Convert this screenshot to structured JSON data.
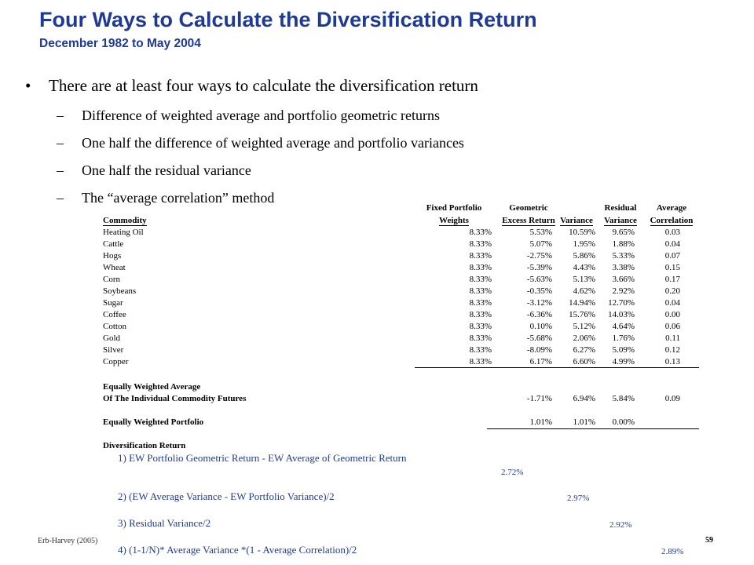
{
  "header": {
    "title": "Four Ways to Calculate the Diversification Return",
    "subtitle": "December  1982 to May 2004"
  },
  "bullets": {
    "main": "There are at least four ways to calculate the diversification return",
    "subs": [
      "Difference of weighted average and portfolio geometric returns",
      "One half the difference of weighted average and portfolio variances",
      "One half the residual variance",
      "The “average correlation” method"
    ]
  },
  "table": {
    "headers": {
      "commodity": "Commodity",
      "weights": [
        "Fixed Portfolio",
        "Weights"
      ],
      "geo": [
        "Geometric",
        "Excess Return"
      ],
      "variance": "Variance",
      "residual": [
        "Residual",
        "Variance"
      ],
      "corr": [
        "Average",
        "Correlation"
      ]
    },
    "rows": [
      {
        "name": "Heating Oil",
        "w": "8.33%",
        "g": "5.53%",
        "v": "10.59%",
        "r": "9.65%",
        "c": "0.03"
      },
      {
        "name": "Cattle",
        "w": "8.33%",
        "g": "5.07%",
        "v": "1.95%",
        "r": "1.88%",
        "c": "0.04"
      },
      {
        "name": "Hogs",
        "w": "8.33%",
        "g": "-2.75%",
        "v": "5.86%",
        "r": "5.33%",
        "c": "0.07"
      },
      {
        "name": "Wheat",
        "w": "8.33%",
        "g": "-5.39%",
        "v": "4.43%",
        "r": "3.38%",
        "c": "0.15"
      },
      {
        "name": "Corn",
        "w": "8.33%",
        "g": "-5.63%",
        "v": "5.13%",
        "r": "3.66%",
        "c": "0.17"
      },
      {
        "name": "Soybeans",
        "w": "8.33%",
        "g": "-0.35%",
        "v": "4.62%",
        "r": "2.92%",
        "c": "0.20"
      },
      {
        "name": "Sugar",
        "w": "8.33%",
        "g": "-3.12%",
        "v": "14.94%",
        "r": "12.70%",
        "c": "0.04"
      },
      {
        "name": "Coffee",
        "w": "8.33%",
        "g": "-6.36%",
        "v": "15.76%",
        "r": "14.03%",
        "c": "0.00"
      },
      {
        "name": "Cotton",
        "w": "8.33%",
        "g": "0.10%",
        "v": "5.12%",
        "r": "4.64%",
        "c": "0.06"
      },
      {
        "name": "Gold",
        "w": "8.33%",
        "g": "-5.68%",
        "v": "2.06%",
        "r": "1.76%",
        "c": "0.11"
      },
      {
        "name": "Silver",
        "w": "8.33%",
        "g": "-8.09%",
        "v": "6.27%",
        "r": "5.09%",
        "c": "0.12"
      },
      {
        "name": "Copper",
        "w": "8.33%",
        "g": "6.17%",
        "v": "6.60%",
        "r": "4.99%",
        "c": "0.13"
      }
    ],
    "ew_average": {
      "label1": "Equally Weighted Average",
      "label2": "Of The Individual Commodity Futures",
      "g": "-1.71%",
      "v": "6.94%",
      "r": "5.84%",
      "c": "0.09"
    },
    "ew_portfolio": {
      "label": "Equally Weighted Portfolio",
      "g": "1.01%",
      "v": "1.01%",
      "r": "0.00%"
    }
  },
  "diversification": {
    "label": "Diversification Return",
    "methods": [
      {
        "text": "1) EW Portfolio Geometric Return - EW Average of Geometric Return",
        "value": "2.72%"
      },
      {
        "text": "2) (EW Average Variance - EW Portfolio Variance)/2",
        "value": "2.97%"
      },
      {
        "text": "3) Residual Variance/2",
        "value": "2.92%"
      },
      {
        "text": "4) (1-1/N)* Average Variance *(1 - Average Correlation)/2",
        "value": "2.89%"
      }
    ]
  },
  "footer": {
    "source": "Erb-Harvey (2005)",
    "page": "59"
  },
  "colors": {
    "title": "#1f3a93",
    "text": "#000000",
    "background": "#ffffff"
  }
}
